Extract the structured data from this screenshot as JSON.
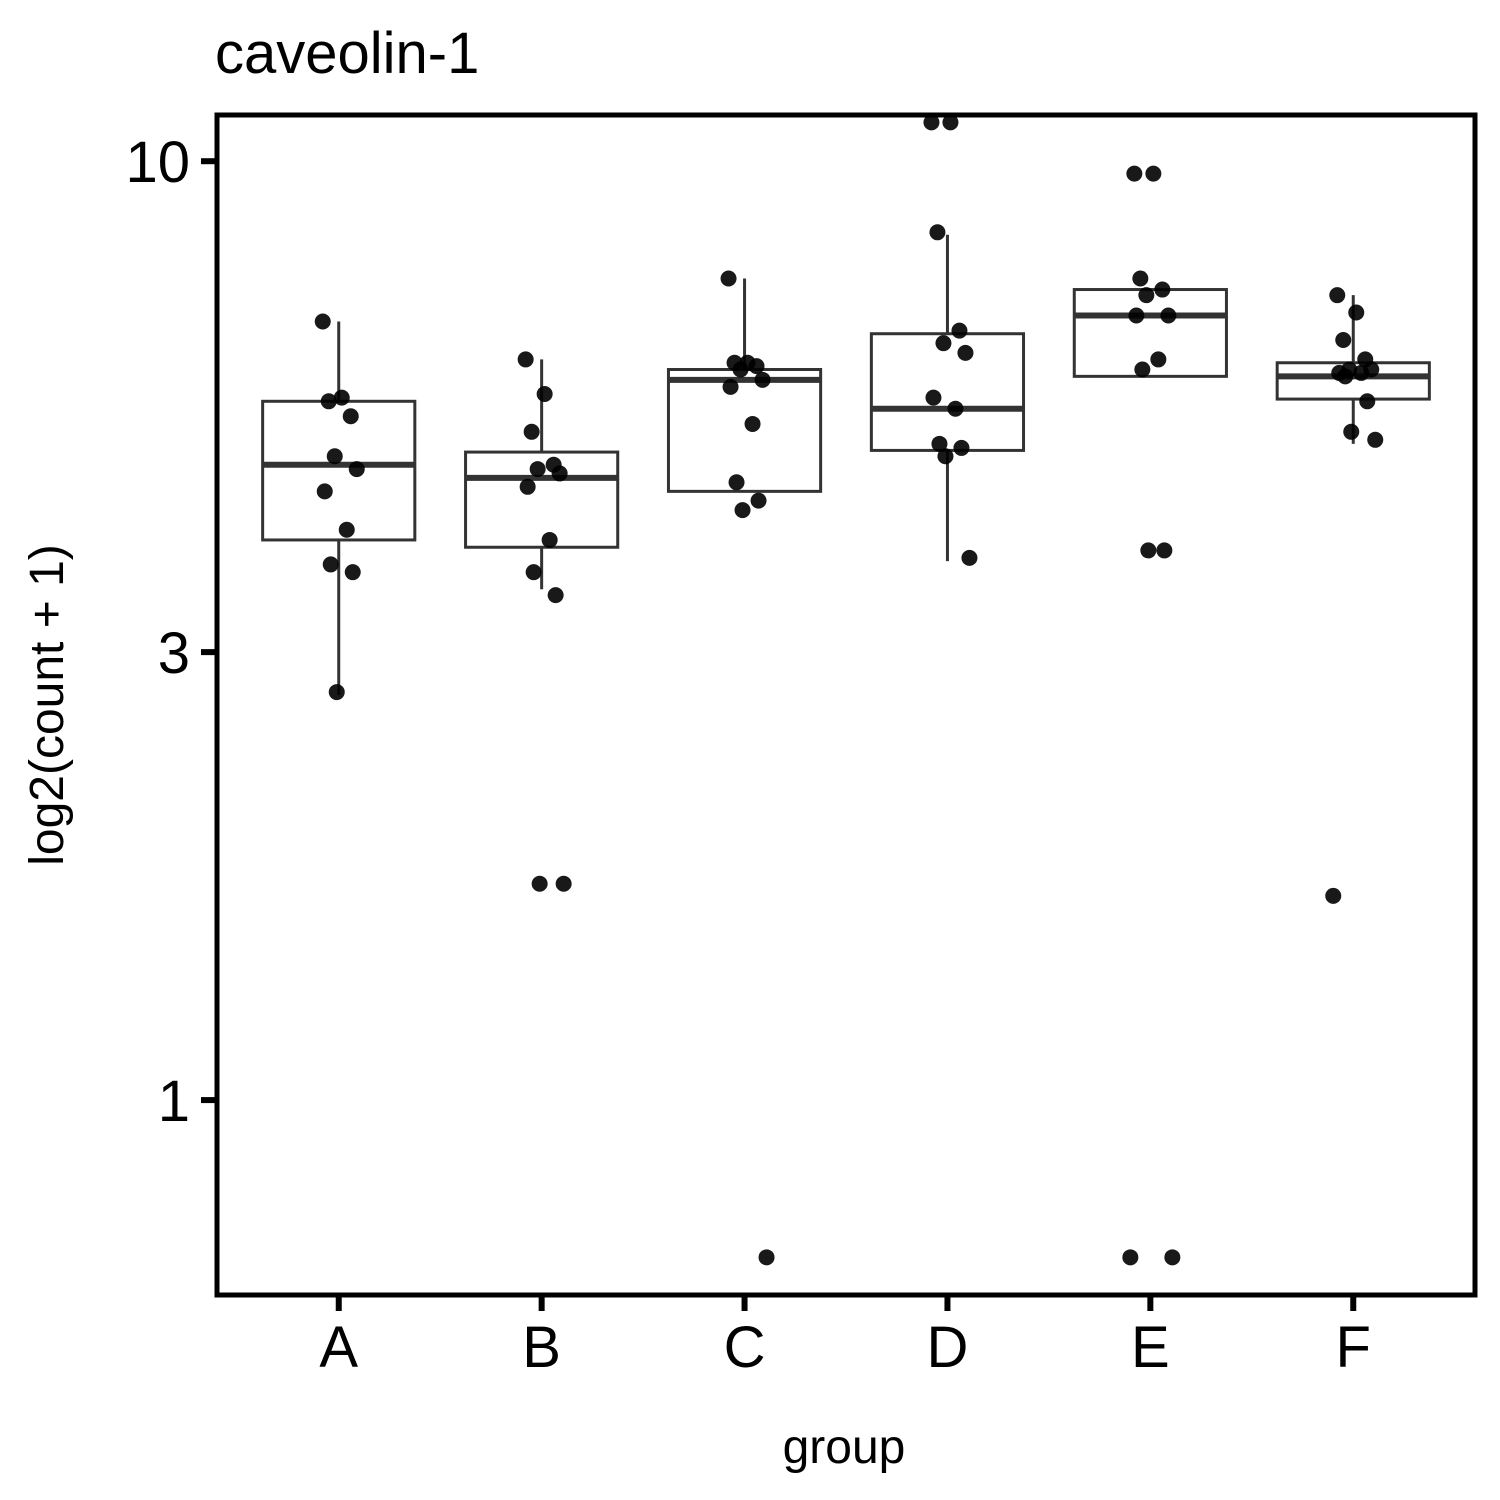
{
  "chart_data": {
    "type": "box",
    "title": "caveolin-1",
    "xlabel": "group",
    "ylabel": "log2(count + 1)",
    "y_scale": "log",
    "ylim": [
      0.62,
      11.2
    ],
    "y_ticks": [
      1,
      3,
      10
    ],
    "y_tick_labels": [
      "1",
      "3",
      "10"
    ],
    "grid": false,
    "legend": "none",
    "categories": [
      "A",
      "B",
      "C",
      "D",
      "E",
      "F"
    ],
    "boxes": [
      {
        "group": "A",
        "whisker_low": 2.7,
        "q1": 3.95,
        "median": 4.75,
        "q3": 5.55,
        "whisker_high": 6.75
      },
      {
        "group": "B",
        "whisker_low": 3.5,
        "q1": 3.88,
        "median": 4.6,
        "q3": 4.9,
        "whisker_high": 6.15
      },
      {
        "group": "C",
        "whisker_low": 4.45,
        "q1": 4.45,
        "median": 5.85,
        "q3": 6.0,
        "whisker_high": 7.5
      },
      {
        "group": "D",
        "whisker_low": 3.75,
        "q1": 4.92,
        "median": 5.45,
        "q3": 6.55,
        "whisker_high": 8.35
      },
      {
        "group": "E",
        "whisker_low": 5.9,
        "q1": 5.9,
        "median": 6.85,
        "q3": 7.3,
        "whisker_high": 7.3
      },
      {
        "group": "F",
        "whisker_low": 5.0,
        "q1": 5.58,
        "median": 5.9,
        "q3": 6.1,
        "whisker_high": 7.2
      }
    ],
    "points": [
      {
        "group": "A",
        "values": [
          6.75,
          5.6,
          5.55,
          5.35,
          4.85,
          4.7,
          4.45,
          4.05,
          3.72,
          3.65,
          2.72
        ]
      },
      {
        "group": "B",
        "values": [
          6.15,
          5.65,
          5.15,
          4.75,
          4.7,
          4.65,
          4.5,
          3.95,
          3.65,
          3.45,
          1.7,
          1.7
        ]
      },
      {
        "group": "C",
        "values": [
          7.5,
          6.1,
          6.1,
          6.05,
          6.0,
          5.85,
          5.75,
          5.25,
          4.55,
          4.35,
          4.25,
          0.68
        ]
      },
      {
        "group": "D",
        "values": [
          11.0,
          11.0,
          8.4,
          6.6,
          6.4,
          6.25,
          5.6,
          5.45,
          5.0,
          4.95,
          4.85,
          3.78
        ]
      },
      {
        "group": "E",
        "values": [
          9.7,
          9.7,
          7.5,
          7.3,
          7.2,
          6.85,
          6.85,
          6.15,
          6.0,
          3.85,
          3.85,
          0.68,
          0.68
        ]
      },
      {
        "group": "F",
        "values": [
          7.2,
          6.9,
          6.45,
          6.15,
          6.0,
          6.0,
          5.95,
          5.95,
          5.9,
          5.55,
          5.15,
          5.05,
          1.65
        ]
      }
    ]
  }
}
